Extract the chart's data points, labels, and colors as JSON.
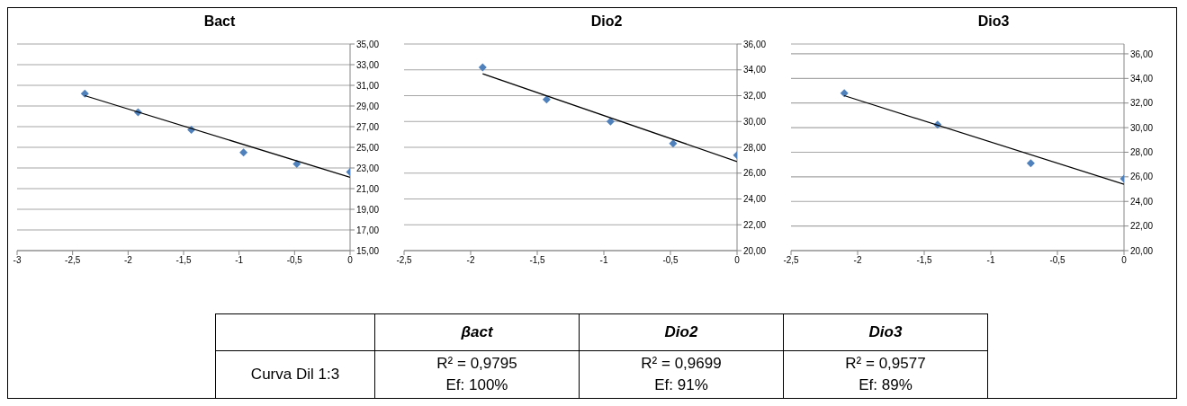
{
  "chart_data": [
    {
      "type": "scatter",
      "title": "Bact",
      "grid": "y",
      "series": [
        {
          "type": "scatter",
          "marker": "diamond",
          "color": "#4f81bd",
          "x": [
            -2.39,
            -1.91,
            -1.43,
            -0.96,
            -0.48,
            0
          ],
          "values": [
            30.2,
            28.4,
            26.7,
            24.5,
            23.4,
            22.6
          ]
        },
        {
          "type": "line",
          "color": "#000000",
          "x": [
            -2.39,
            0
          ],
          "values": [
            30.0,
            22.1
          ]
        }
      ],
      "xlim": [
        -3,
        0
      ],
      "xticks": [
        {
          "value": -3,
          "label": "-3"
        },
        {
          "value": -2.5,
          "label": "-2,5"
        },
        {
          "value": -2,
          "label": "-2"
        },
        {
          "value": -1.5,
          "label": "-1,5"
        },
        {
          "value": -1,
          "label": "-1"
        },
        {
          "value": -0.5,
          "label": "-0,5"
        },
        {
          "value": 0,
          "label": "0"
        }
      ],
      "ylim": [
        15,
        35
      ],
      "yticks": [
        {
          "value": 15,
          "label": "15,00"
        },
        {
          "value": 17,
          "label": "17,00"
        },
        {
          "value": 19,
          "label": "19,00"
        },
        {
          "value": 21,
          "label": "21,00"
        },
        {
          "value": 23,
          "label": "23,00"
        },
        {
          "value": 25,
          "label": "25,00"
        },
        {
          "value": 27,
          "label": "27,00"
        },
        {
          "value": 29,
          "label": "29,00"
        },
        {
          "value": 31,
          "label": "31,00"
        },
        {
          "value": 33,
          "label": "33,00"
        },
        {
          "value": 35,
          "label": "35,00"
        }
      ]
    },
    {
      "type": "scatter",
      "title": "Dio2",
      "grid": "y",
      "series": [
        {
          "type": "scatter",
          "marker": "diamond",
          "color": "#4f81bd",
          "x": [
            -1.91,
            -1.43,
            -0.95,
            -0.48,
            0
          ],
          "values": [
            34.2,
            31.7,
            30.0,
            28.3,
            27.4
          ]
        },
        {
          "type": "line",
          "color": "#000000",
          "x": [
            -1.91,
            0
          ],
          "values": [
            33.7,
            26.9
          ]
        }
      ],
      "xlim": [
        -2.5,
        0
      ],
      "xticks": [
        {
          "value": -2.5,
          "label": "-2,5"
        },
        {
          "value": -2,
          "label": "-2"
        },
        {
          "value": -1.5,
          "label": "-1,5"
        },
        {
          "value": -1,
          "label": "-1"
        },
        {
          "value": -0.5,
          "label": "-0,5"
        },
        {
          "value": 0,
          "label": "0"
        }
      ],
      "ylim": [
        20,
        36
      ],
      "yticks": [
        {
          "value": 20,
          "label": "20,00"
        },
        {
          "value": 22,
          "label": "22,00"
        },
        {
          "value": 24,
          "label": "24,00"
        },
        {
          "value": 26,
          "label": "26,00"
        },
        {
          "value": 28,
          "label": "28,00"
        },
        {
          "value": 30,
          "label": "30,00"
        },
        {
          "value": 32,
          "label": "32,00"
        },
        {
          "value": 34,
          "label": "34,00"
        },
        {
          "value": 36,
          "label": "36,00"
        }
      ]
    },
    {
      "type": "scatter",
      "title": "Dio3",
      "grid": "y",
      "series": [
        {
          "type": "scatter",
          "marker": "diamond",
          "color": "#4f81bd",
          "x": [
            -2.1,
            -1.4,
            -0.7,
            0
          ],
          "values": [
            32.8,
            30.25,
            27.1,
            25.85
          ]
        },
        {
          "type": "line",
          "color": "#000000",
          "x": [
            -2.1,
            0
          ],
          "values": [
            32.6,
            25.4
          ]
        }
      ],
      "xlim": [
        -2.5,
        0
      ],
      "xticks": [
        {
          "value": -2.5,
          "label": "-2,5"
        },
        {
          "value": -2,
          "label": "-2"
        },
        {
          "value": -1.5,
          "label": "-1,5"
        },
        {
          "value": -1,
          "label": "-1"
        },
        {
          "value": -0.5,
          "label": "-0,5"
        },
        {
          "value": 0,
          "label": "0"
        }
      ],
      "ylim": [
        20,
        36.8
      ],
      "yticks": [
        {
          "value": 20,
          "label": "20,00"
        },
        {
          "value": 22,
          "label": "22,00"
        },
        {
          "value": 24,
          "label": "24,00"
        },
        {
          "value": 26,
          "label": "26,00"
        },
        {
          "value": 28,
          "label": "28,00"
        },
        {
          "value": 30,
          "label": "30,00"
        },
        {
          "value": 32,
          "label": "32,00"
        },
        {
          "value": 34,
          "label": "34,00"
        },
        {
          "value": 36,
          "label": "36,00"
        }
      ]
    },
    {
      "type": "other",
      "categories": [
        "βact",
        "Dio2",
        "Dio3"
      ],
      "y_categories": [
        "Curva Dil 1:3"
      ],
      "cell_labels": [
        [
          "R² = 0,9795\nEf: 100%",
          "R² = 0,9699\nEf: 91%",
          "R² = 0,9577\nEf: 89%"
        ]
      ]
    }
  ]
}
